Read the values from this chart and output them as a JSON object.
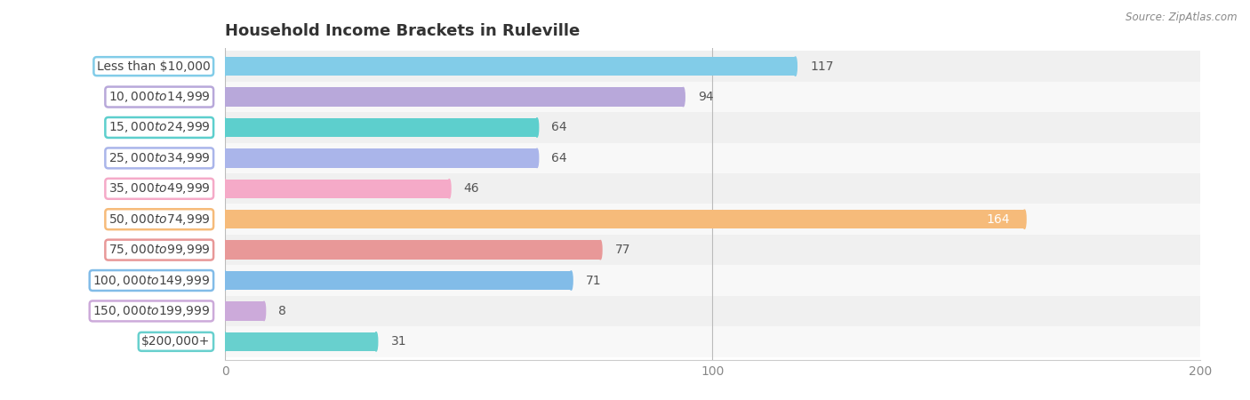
{
  "title": "Household Income Brackets in Ruleville",
  "source": "Source: ZipAtlas.com",
  "categories": [
    "Less than $10,000",
    "$10,000 to $14,999",
    "$15,000 to $24,999",
    "$25,000 to $34,999",
    "$35,000 to $49,999",
    "$50,000 to $74,999",
    "$75,000 to $99,999",
    "$100,000 to $149,999",
    "$150,000 to $199,999",
    "$200,000+"
  ],
  "values": [
    117,
    94,
    64,
    64,
    46,
    164,
    77,
    71,
    8,
    31
  ],
  "bar_colors": [
    "#82cce8",
    "#b8a8da",
    "#5dcfcd",
    "#aab5ea",
    "#f5aac8",
    "#f6bb7a",
    "#e89898",
    "#82bce8",
    "#ccaada",
    "#68d0ce"
  ],
  "xlim": [
    0,
    200
  ],
  "xticks": [
    0,
    100,
    200
  ],
  "title_fontsize": 13,
  "label_fontsize": 10,
  "tick_fontsize": 10,
  "value_fontsize": 10,
  "row_colors": [
    "#f0f0f0",
    "#f8f8f8"
  ]
}
